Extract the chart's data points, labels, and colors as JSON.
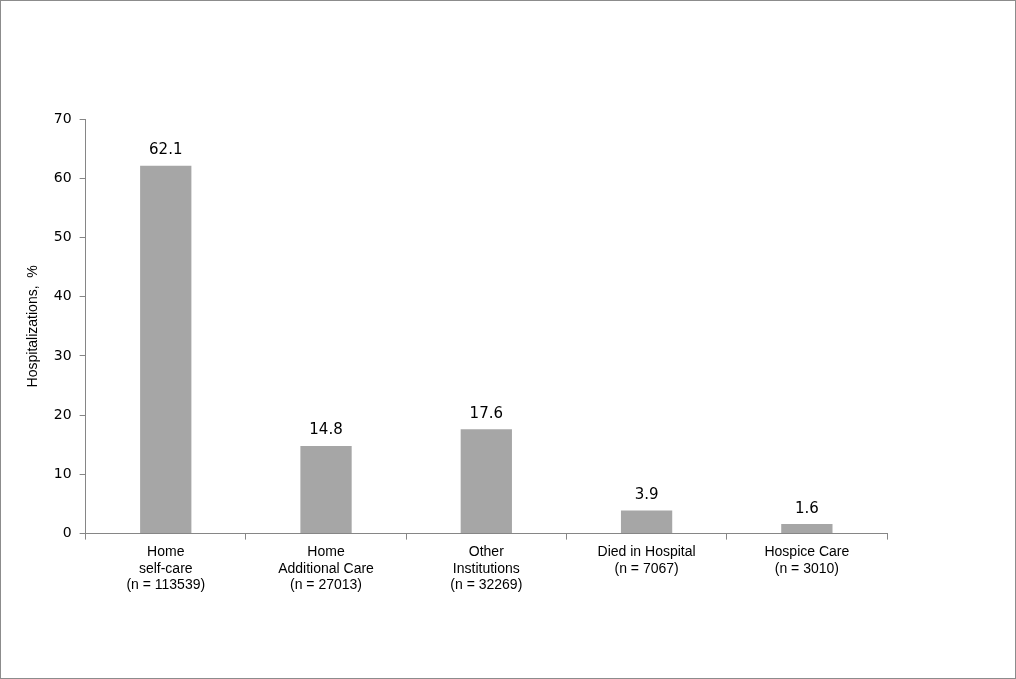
{
  "chart_data": {
    "type": "bar",
    "categories": [
      "Home\nself-care\n(n = 113539)",
      "Home\nAdditional Care\n(n = 27013)",
      "Other\nInstitutions\n(n = 32269)",
      "Died in Hospital\n(n = 7067)",
      "Hospice Care\n(n = 3010)"
    ],
    "values": [
      62.1,
      14.8,
      17.6,
      3.9,
      1.6
    ],
    "color": "#a6a6a6",
    "ylabel": "Hospitalizations,  %",
    "ylim": [
      0,
      70
    ],
    "yticks": [
      0,
      10,
      20,
      30,
      40,
      50,
      60,
      70
    ],
    "data_labels": true,
    "grid": false,
    "legend": false
  }
}
